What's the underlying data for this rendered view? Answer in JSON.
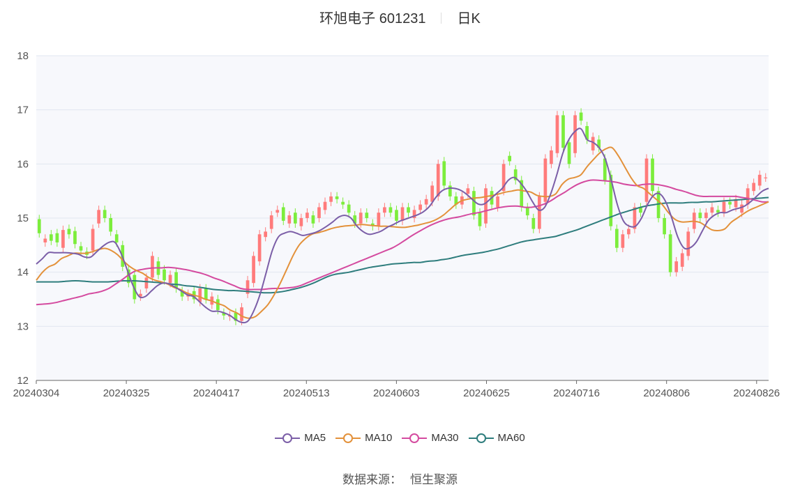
{
  "header": {
    "stock_name": "环旭电子 601231",
    "period": "日K"
  },
  "source": {
    "label": "数据来源：",
    "value": "恒生聚源"
  },
  "colors": {
    "up": "#ff7b7b",
    "down": "#7ced3c",
    "MA5": "#7b5ea7",
    "MA10": "#e3913a",
    "MA30": "#d44a9f",
    "MA60": "#2e7d7d",
    "plot_bg": "#f7f8fc",
    "grid": "#e1e6f0"
  },
  "chart_data": {
    "type": "candlestick",
    "ylim": [
      12,
      18
    ],
    "yticks": [
      "12",
      "13",
      "14",
      "15",
      "16",
      "17",
      "18"
    ],
    "xticks": [
      "20240304",
      "20240325",
      "20240417",
      "20240513",
      "20240603",
      "20240625",
      "20240716",
      "20240806",
      "20240826"
    ],
    "xtick_index": [
      0,
      15,
      30,
      45,
      60,
      75,
      90,
      105,
      120
    ],
    "legend": [
      "MA5",
      "MA10",
      "MA30",
      "MA60"
    ],
    "candles": [
      [
        14.98,
        14.72
      ],
      [
        14.55,
        14.62
      ],
      [
        14.7,
        14.58
      ],
      [
        14.72,
        14.55
      ],
      [
        14.45,
        14.78
      ],
      [
        14.8,
        14.7
      ],
      [
        14.76,
        14.52
      ],
      [
        14.48,
        14.4
      ],
      [
        14.38,
        14.32
      ],
      [
        14.4,
        14.8
      ],
      [
        14.9,
        15.15
      ],
      [
        15.15,
        15.0
      ],
      [
        15.0,
        14.75
      ],
      [
        14.7,
        14.55
      ],
      [
        14.5,
        14.1
      ],
      [
        14.05,
        13.8
      ],
      [
        13.95,
        13.5
      ],
      [
        13.55,
        13.6
      ],
      [
        13.7,
        13.9
      ],
      [
        13.9,
        14.3
      ],
      [
        14.2,
        13.95
      ],
      [
        14.05,
        13.85
      ],
      [
        13.8,
        13.95
      ],
      [
        14.0,
        13.7
      ],
      [
        13.65,
        13.55
      ],
      [
        13.55,
        13.6
      ],
      [
        13.65,
        13.5
      ],
      [
        13.45,
        13.7
      ],
      [
        13.7,
        13.5
      ],
      [
        13.4,
        13.55
      ],
      [
        13.5,
        13.3
      ],
      [
        13.25,
        13.2
      ],
      [
        13.18,
        13.2
      ],
      [
        13.25,
        13.1
      ],
      [
        13.1,
        13.35
      ],
      [
        13.6,
        13.85
      ],
      [
        13.8,
        14.3
      ],
      [
        14.2,
        14.7
      ],
      [
        14.65,
        14.75
      ],
      [
        14.8,
        15.05
      ],
      [
        15.1,
        15.15
      ],
      [
        15.2,
        14.95
      ],
      [
        14.9,
        15.05
      ],
      [
        15.1,
        14.9
      ],
      [
        14.85,
        15.0
      ],
      [
        15.0,
        15.1
      ],
      [
        15.05,
        14.9
      ],
      [
        15.0,
        15.2
      ],
      [
        15.15,
        15.3
      ],
      [
        15.3,
        15.4
      ],
      [
        15.4,
        15.35
      ],
      [
        15.3,
        15.25
      ],
      [
        15.25,
        15.1
      ],
      [
        15.05,
        14.9
      ],
      [
        14.9,
        15.1
      ],
      [
        15.1,
        15.0
      ],
      [
        14.9,
        14.85
      ],
      [
        14.85,
        15.1
      ],
      [
        15.1,
        15.2
      ],
      [
        15.2,
        15.1
      ],
      [
        15.15,
        14.95
      ],
      [
        14.95,
        15.2
      ],
      [
        15.2,
        15.1
      ],
      [
        15.0,
        15.15
      ],
      [
        15.15,
        15.25
      ],
      [
        15.25,
        15.35
      ],
      [
        15.3,
        15.6
      ],
      [
        15.4,
        16.0
      ],
      [
        16.05,
        15.6
      ],
      [
        15.6,
        15.4
      ],
      [
        15.4,
        15.25
      ],
      [
        15.25,
        15.4
      ],
      [
        15.45,
        15.55
      ],
      [
        15.5,
        15.05
      ],
      [
        15.1,
        14.85
      ],
      [
        14.9,
        15.55
      ],
      [
        15.5,
        15.25
      ],
      [
        15.2,
        15.4
      ],
      [
        15.5,
        16.0
      ],
      [
        16.15,
        16.05
      ],
      [
        15.9,
        15.7
      ],
      [
        15.7,
        15.2
      ],
      [
        15.2,
        15.05
      ],
      [
        15.0,
        14.8
      ],
      [
        14.8,
        15.4
      ],
      [
        15.3,
        16.1
      ],
      [
        16.0,
        16.25
      ],
      [
        16.2,
        16.9
      ],
      [
        16.9,
        16.3
      ],
      [
        16.4,
        16.0
      ],
      [
        16.2,
        16.9
      ],
      [
        16.95,
        16.8
      ],
      [
        16.7,
        16.45
      ],
      [
        16.25,
        16.5
      ],
      [
        16.45,
        16.3
      ],
      [
        16.1,
        15.7
      ],
      [
        15.8,
        14.85
      ],
      [
        14.8,
        14.45
      ],
      [
        14.45,
        14.7
      ],
      [
        14.7,
        14.8
      ],
      [
        14.8,
        15.2
      ],
      [
        15.2,
        15.1
      ],
      [
        15.3,
        16.1
      ],
      [
        16.1,
        15.5
      ],
      [
        15.5,
        15.0
      ],
      [
        15.0,
        14.7
      ],
      [
        14.7,
        14.0
      ],
      [
        14.0,
        14.2
      ],
      [
        14.1,
        14.35
      ],
      [
        14.3,
        14.75
      ],
      [
        14.8,
        15.1
      ],
      [
        15.1,
        15.0
      ],
      [
        15.0,
        15.1
      ],
      [
        15.1,
        15.2
      ],
      [
        15.15,
        15.1
      ],
      [
        15.1,
        15.3
      ],
      [
        15.3,
        15.25
      ],
      [
        15.2,
        15.35
      ],
      [
        15.1,
        15.25
      ],
      [
        15.25,
        15.55
      ],
      [
        15.5,
        15.65
      ],
      [
        15.6,
        15.8
      ],
      [
        15.75,
        15.75
      ]
    ],
    "ma": {
      "MA5": [
        14.15,
        14.25,
        14.36,
        14.36,
        14.36,
        14.36,
        14.35,
        14.33,
        14.28,
        14.28,
        14.38,
        14.48,
        14.55,
        14.55,
        14.35,
        14.05,
        13.75,
        13.55,
        13.55,
        13.65,
        13.75,
        13.8,
        13.78,
        13.72,
        13.65,
        13.58,
        13.55,
        13.45,
        13.35,
        13.28,
        13.28,
        13.25,
        13.2,
        13.12,
        13.07,
        13.1,
        13.3,
        13.6,
        14.0,
        14.4,
        14.65,
        14.72,
        14.75,
        14.72,
        14.68,
        14.7,
        14.73,
        14.78,
        14.85,
        14.93,
        15.02,
        15.05,
        15.0,
        14.85,
        14.75,
        14.7,
        14.72,
        14.76,
        14.83,
        14.88,
        14.94,
        14.98,
        15.02,
        15.06,
        15.12,
        15.22,
        15.38,
        15.5,
        15.55,
        15.55,
        15.52,
        15.45,
        15.35,
        15.26,
        15.26,
        15.35,
        15.45,
        15.55,
        15.7,
        15.75,
        15.65,
        15.5,
        15.3,
        15.15,
        15.2,
        15.45,
        15.8,
        16.2,
        16.45,
        16.6,
        16.65,
        16.45,
        16.4,
        16.3,
        16.1,
        15.7,
        15.25,
        14.95,
        14.85,
        14.85,
        15.0,
        15.25,
        15.42,
        15.45,
        15.3,
        15.0,
        14.65,
        14.45,
        14.45,
        14.55,
        14.75,
        14.95,
        15.05,
        15.1,
        15.1,
        15.15,
        15.18,
        15.22,
        15.3,
        15.4,
        15.5,
        15.55
      ],
      "MA10": [
        13.85,
        14.0,
        14.1,
        14.15,
        14.25,
        14.3,
        14.35,
        14.35,
        14.35,
        14.38,
        14.42,
        14.44,
        14.4,
        14.32,
        14.2,
        14.1,
        14.03,
        13.98,
        13.9,
        13.85,
        13.82,
        13.78,
        13.72,
        13.68,
        13.62,
        13.58,
        13.55,
        13.5,
        13.47,
        13.42,
        13.38,
        13.3,
        13.25,
        13.18,
        13.15,
        13.18,
        13.28,
        13.4,
        13.58,
        13.8,
        14.05,
        14.3,
        14.5,
        14.62,
        14.7,
        14.73,
        14.76,
        14.8,
        14.83,
        14.85,
        14.86,
        14.87,
        14.88,
        14.87,
        14.86,
        14.85,
        14.85,
        14.84,
        14.83,
        14.83,
        14.85,
        14.87,
        14.9,
        14.93,
        14.98,
        15.05,
        15.15,
        15.25,
        15.32,
        15.35,
        15.37,
        15.38,
        15.4,
        15.42,
        15.45,
        15.48,
        15.5,
        15.52,
        15.5,
        15.48,
        15.42,
        15.4,
        15.4,
        15.45,
        15.62,
        15.72,
        15.75,
        15.8,
        15.95,
        16.08,
        16.2,
        16.28,
        16.3,
        16.15,
        15.95,
        15.75,
        15.6,
        15.55,
        15.45,
        15.35,
        15.25,
        15.1,
        14.98,
        14.93,
        14.93,
        14.94,
        14.92,
        14.85,
        14.78,
        14.77,
        14.8,
        14.92,
        15.0,
        15.08,
        15.15,
        15.2,
        15.25,
        15.3
      ],
      "MA30": [
        13.4,
        13.41,
        13.42,
        13.44,
        13.47,
        13.5,
        13.53,
        13.56,
        13.6,
        13.62,
        13.65,
        13.7,
        13.78,
        13.86,
        13.95,
        14.02,
        14.05,
        14.07,
        14.08,
        14.08,
        14.09,
        14.08,
        14.06,
        14.04,
        14.01,
        13.98,
        13.94,
        13.89,
        13.85,
        13.8,
        13.75,
        13.7,
        13.68,
        13.68,
        13.68,
        13.69,
        13.7,
        13.7,
        13.71,
        13.72,
        13.75,
        13.8,
        13.85,
        13.9,
        13.95,
        14.0,
        14.05,
        14.1,
        14.15,
        14.2,
        14.25,
        14.3,
        14.35,
        14.4,
        14.45,
        14.52,
        14.6,
        14.68,
        14.75,
        14.82,
        14.88,
        14.93,
        14.97,
        15.0,
        15.02,
        15.05,
        15.08,
        15.1,
        15.13,
        15.16,
        15.19,
        15.21,
        15.22,
        15.22,
        15.2,
        15.2,
        15.22,
        15.26,
        15.32,
        15.4,
        15.47,
        15.55,
        15.62,
        15.67,
        15.7,
        15.7,
        15.69,
        15.68,
        15.66,
        15.63,
        15.61,
        15.6,
        15.62,
        15.63,
        15.62,
        15.6,
        15.57,
        15.53,
        15.5,
        15.46,
        15.42,
        15.4,
        15.4,
        15.4,
        15.4,
        15.4,
        15.4,
        15.38,
        15.36,
        15.33,
        15.3,
        15.3
      ],
      "MA60": [
        13.82,
        13.82,
        13.82,
        13.82,
        13.83,
        13.84,
        13.84,
        13.83,
        13.82,
        13.82,
        13.82,
        13.83,
        13.84,
        13.84,
        13.84,
        13.83,
        13.82,
        13.81,
        13.8,
        13.78,
        13.77,
        13.75,
        13.74,
        13.72,
        13.7,
        13.68,
        13.67,
        13.66,
        13.66,
        13.65,
        13.64,
        13.63,
        13.62,
        13.62,
        13.63,
        13.65,
        13.68,
        13.71,
        13.75,
        13.8,
        13.86,
        13.92,
        13.96,
        13.98,
        14.0,
        14.03,
        14.06,
        14.09,
        14.11,
        14.13,
        14.15,
        14.16,
        14.17,
        14.18,
        14.18,
        14.2,
        14.21,
        14.23,
        14.25,
        14.28,
        14.31,
        14.33,
        14.35,
        14.37,
        14.4,
        14.43,
        14.47,
        14.51,
        14.55,
        14.58,
        14.6,
        14.62,
        14.64,
        14.66,
        14.7,
        14.74,
        14.78,
        14.83,
        14.88,
        14.93,
        14.98,
        15.03,
        15.08,
        15.12,
        15.16,
        15.2,
        15.23,
        15.25,
        15.27,
        15.28,
        15.28,
        15.28,
        15.29,
        15.29,
        15.3,
        15.3,
        15.31,
        15.32,
        15.33,
        15.34,
        15.35,
        15.36,
        15.37,
        15.38
      ]
    }
  }
}
